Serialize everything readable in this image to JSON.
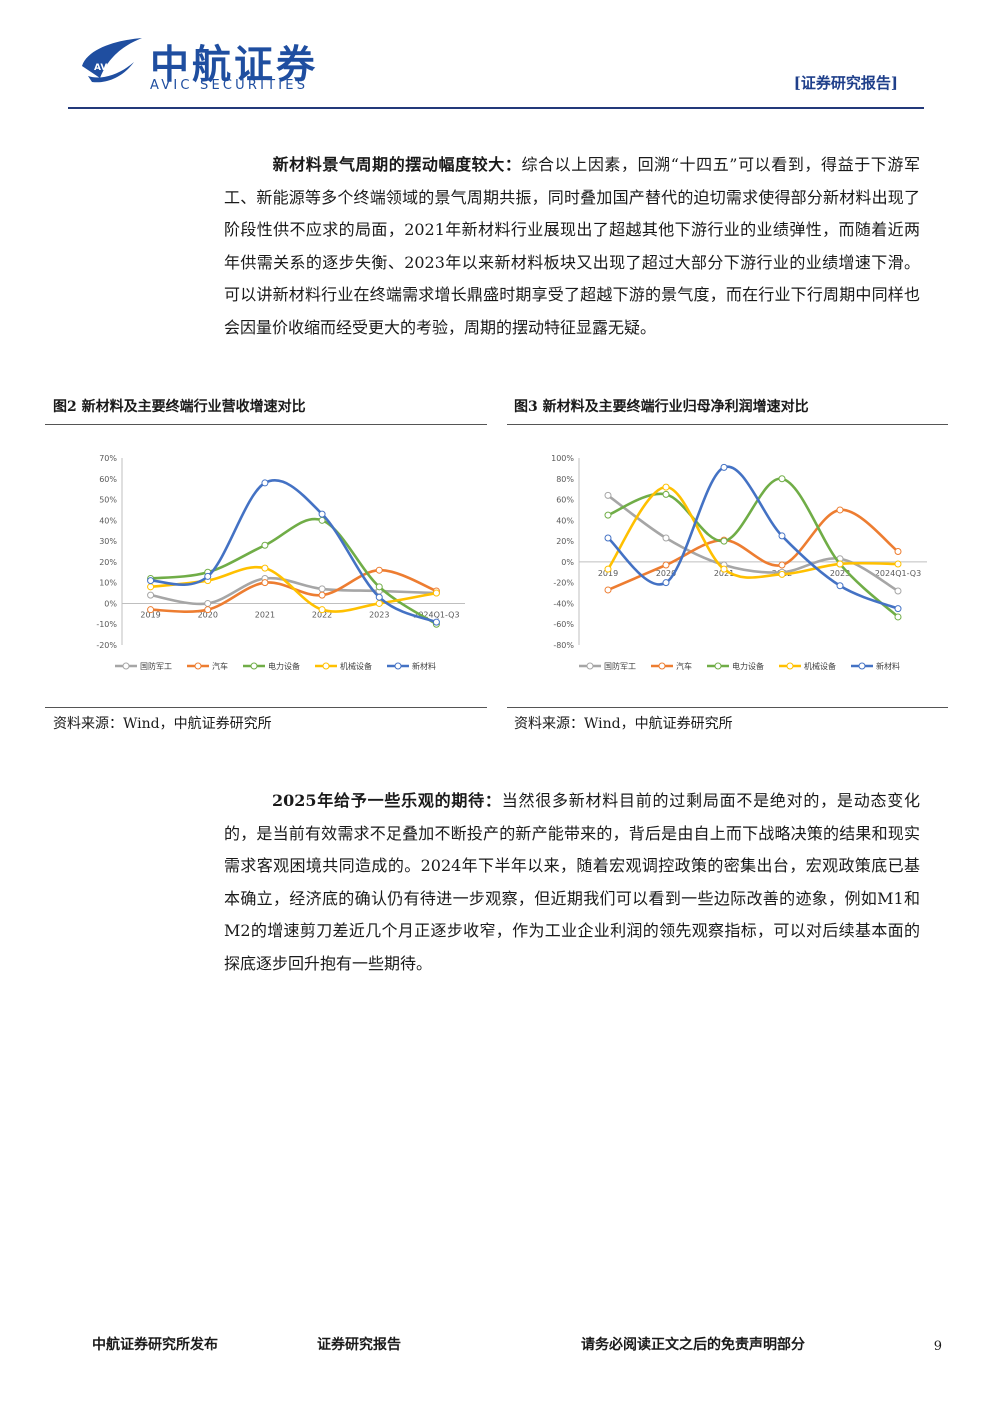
{
  "header": {
    "brand_cn": "中航证券",
    "brand_en": "AVIC SECURITIES",
    "logo_badge": "AVIC",
    "report_tag": "[证券研究报告]"
  },
  "paragraph1": {
    "lead": "新材料景气周期的摆动幅度较大：",
    "body": "综合以上因素，回溯“十四五”可以看到，得益于下游军工、新能源等多个终端领域的景气周期共振，同时叠加国产替代的迫切需求使得部分新材料出现了阶段性供不应求的局面，2021年新材料行业展现出了超越其他下游行业的业绩弹性，而随着近两年供需关系的逐步失衡、2023年以来新材料板块又出现了超过大部分下游行业的业绩增速下滑。可以讲新材料行业在终端需求增长鼎盛时期享受了超越下游的景气度，而在行业下行周期中同样也会因量价收缩而经受更大的考验，周期的摆动特征显露无疑。"
  },
  "figure2": {
    "title": "图2 新材料及主要终端行业营收增速对比",
    "source": "资料来源：Wind，中航证券研究所"
  },
  "figure3": {
    "title": "图3 新材料及主要终端行业归母净利润增速对比",
    "source": "资料来源：Wind，中航证券研究所"
  },
  "chart_data": [
    {
      "type": "line",
      "categories": [
        "2019",
        "2020",
        "2021",
        "2022",
        "2023",
        "2024Q1-Q3"
      ],
      "ylim": [
        -20,
        70
      ],
      "yticks": [
        "-20%",
        "-10%",
        "0%",
        "10%",
        "20%",
        "30%",
        "40%",
        "50%",
        "60%",
        "70%"
      ],
      "legend_position": "bottom",
      "series": [
        {
          "name": "国防军工",
          "color": "#a6a6a6",
          "values": [
            4,
            0,
            12,
            7,
            6,
            5
          ]
        },
        {
          "name": "汽车",
          "color": "#ed7d31",
          "values": [
            -3,
            -3,
            10,
            4,
            16,
            6
          ]
        },
        {
          "name": "电力设备",
          "color": "#70ad47",
          "values": [
            12,
            15,
            28,
            40,
            8,
            -10
          ]
        },
        {
          "name": "机械设备",
          "color": "#ffc000",
          "values": [
            8,
            11,
            17,
            -3,
            0,
            5
          ]
        },
        {
          "name": "新材料",
          "color": "#4472c4",
          "values": [
            11,
            13,
            58,
            43,
            3,
            -9
          ]
        }
      ]
    },
    {
      "type": "line",
      "categories": [
        "2019",
        "2020",
        "2021",
        "2022",
        "2023",
        "2024Q1-Q3"
      ],
      "ylim": [
        -80,
        100
      ],
      "yticks": [
        "-80%",
        "-60%",
        "-40%",
        "-20%",
        "0%",
        "20%",
        "40%",
        "60%",
        "80%",
        "100%"
      ],
      "legend_position": "bottom",
      "series": [
        {
          "name": "国防军工",
          "color": "#a6a6a6",
          "values": [
            64,
            23,
            -3,
            -10,
            3,
            -28
          ]
        },
        {
          "name": "汽车",
          "color": "#ed7d31",
          "values": [
            -27,
            -3,
            21,
            -3,
            50,
            10
          ]
        },
        {
          "name": "电力设备",
          "color": "#70ad47",
          "values": [
            45,
            65,
            20,
            80,
            -2,
            -53
          ]
        },
        {
          "name": "机械设备",
          "color": "#ffc000",
          "values": [
            -7,
            72,
            -7,
            -12,
            -2,
            -2
          ]
        },
        {
          "name": "新材料",
          "color": "#4472c4",
          "values": [
            23,
            -20,
            91,
            25,
            -23,
            -45
          ]
        }
      ]
    }
  ],
  "paragraph2": {
    "lead": "2025年给予一些乐观的期待：",
    "body": "当然很多新材料目前的过剩局面不是绝对的，是动态变化的，是当前有效需求不足叠加不断投产的新产能带来的，背后是由自上而下战略决策的结果和现实需求客观困境共同造成的。2024年下半年以来，随着宏观调控政策的密集出台，宏观政策底已基本确立，经济底的确认仍有待进一步观察，但近期我们可以看到一些边际改善的迹象，例如M1和M2的增速剪刀差近几个月正逐步收窄，作为工业企业利润的领先观察指标，可以对后续基本面的探底逐步回升抱有一些期待。"
  },
  "footer": {
    "left": "中航证券研究所发布",
    "center": "证券研究报告",
    "right": "请务必阅读正文之后的免责声明部分",
    "page": "9"
  }
}
